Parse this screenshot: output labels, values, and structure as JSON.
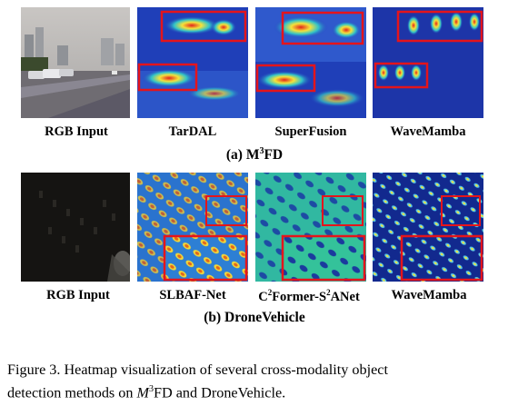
{
  "row1": {
    "labels": [
      "RGB Input",
      "TarDAL",
      "SuperFusion",
      "WaveMamba"
    ],
    "subtitle_prefix": "(a) M",
    "subtitle_sup": "3",
    "subtitle_suffix": "FD"
  },
  "row2": {
    "labels": [
      "RGB Input",
      "SLBAF-Net"
    ],
    "label3_a": "C",
    "label3_a_sup": "2",
    "label3_b": "Former-S",
    "label3_b_sup": "2",
    "label3_c": "ANet",
    "label4": "WaveMamba",
    "subtitle": "(b) DroneVehicle"
  },
  "caption": {
    "line1": "Figure 3.  Heatmap visualization of several cross-modality object",
    "line2_a": "detection methods on ",
    "line2_m": "M",
    "line2_sup": "3",
    "line2_b": "FD and DroneVehicle."
  },
  "colors": {
    "heat_blue": "#1f3fb8",
    "heat_red": "#e0201a",
    "box_red": "#e5141b"
  }
}
